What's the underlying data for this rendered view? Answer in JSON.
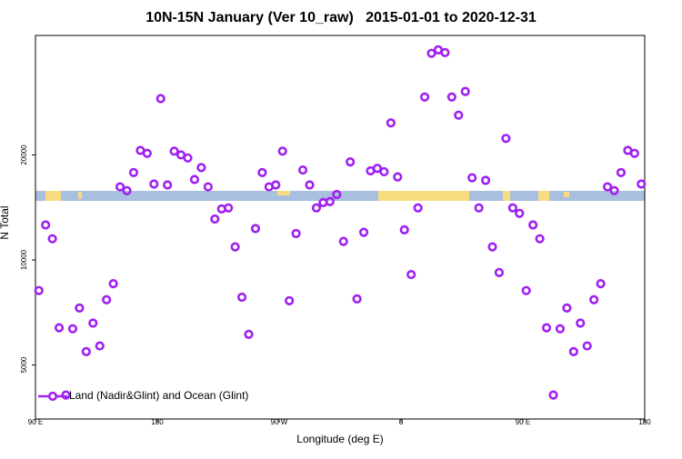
{
  "chart_data": {
    "type": "scatter",
    "title": "10N-15N January (Ver 10_raw)   2015-01-01 to 2020-12-31",
    "x_label": "Longitude (deg E)",
    "y_label": "N Total",
    "xlim": [
      90,
      540
    ],
    "xticks": [
      {
        "value": 90,
        "label": "90 E"
      },
      180,
      {
        "value": 270,
        "label": "90 W"
      },
      {
        "value": 360,
        "label": "0"
      },
      {
        "value": 450,
        "label": "90 E"
      },
      {
        "value": 540,
        "label": "180"
      }
    ],
    "ylim": [
      3500,
      44000
    ],
    "ylog": true,
    "yticks": [
      5000,
      10000,
      20000
    ],
    "legend": "bottom-left",
    "series": [
      {
        "name": "Land (Nadir&Glint) and Ocean (Glint)",
        "color": "#a020f0",
        "x": [
          92.5,
          97.5,
          102.5,
          107.5,
          112.5,
          117.5,
          122.5,
          127.5,
          132.5,
          137.5,
          142.5,
          147.5,
          152.5,
          157.5,
          162.5,
          167.5,
          172.5,
          177.5,
          182.5,
          187.5,
          192.5,
          197.5,
          202.5,
          207.5,
          212.5,
          217.5,
          222.5,
          227.5,
          232.5,
          237.5,
          242.5,
          247.5,
          252.5,
          257.5,
          262.5,
          267.5,
          272.5,
          277.5,
          282.5,
          287.5,
          292.5,
          297.5,
          302.5,
          307.5,
          312.5,
          317.5,
          322.5,
          327.5,
          332.5,
          337.5,
          342.5,
          347.5,
          352.5,
          357.5,
          362.5,
          367.5,
          372.5,
          377.5,
          382.5,
          387.5,
          392.5,
          397.5,
          402.5,
          407.5,
          412.5,
          417.5,
          422.5,
          427.5,
          432.5,
          437.5,
          442.5,
          447.5,
          452.5,
          457.5,
          462.5,
          467.5,
          472.5,
          477.5,
          482.5,
          487.5,
          492.5,
          497.5,
          502.5,
          507.5,
          512.5,
          517.5,
          522.5,
          527.5,
          532.5,
          537.5
        ],
        "values": [
          8170,
          12600,
          11500,
          6390,
          4100,
          6350,
          7280,
          5460,
          6590,
          5670,
          7690,
          8550,
          16200,
          15800,
          17800,
          20600,
          20200,
          16500,
          29000,
          16400,
          20500,
          20000,
          19600,
          17000,
          18400,
          16200,
          13100,
          14000,
          14100,
          10900,
          7820,
          6120,
          12300,
          17800,
          16200,
          16400,
          20500,
          7640,
          11900,
          18100,
          16400,
          14100,
          14600,
          14700,
          15400,
          11300,
          19100,
          7730,
          12000,
          18000,
          18300,
          17900,
          24700,
          17300,
          12200,
          9080,
          14100,
          29300,
          39100,
          40000,
          39300,
          29300,
          26000,
          30400,
          17200,
          14100,
          16900,
          10900,
          9200,
          22300,
          14100,
          13600,
          8170,
          12600,
          11500,
          6390,
          4100,
          6350,
          7280,
          5460,
          6590,
          5670,
          7690,
          8550,
          16200,
          15800,
          17800,
          20600,
          20200,
          16500
        ]
      }
    ]
  }
}
